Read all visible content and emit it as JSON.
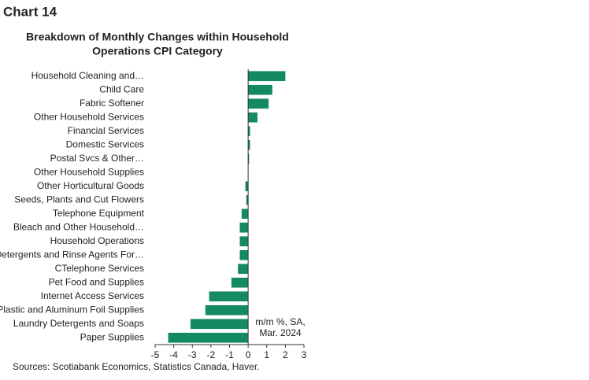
{
  "chart_label": "Chart 14",
  "chart_data": {
    "type": "barh",
    "title": [
      "Breakdown of Monthly Changes within Household",
      "Operations CPI Category"
    ],
    "categories": [
      "Household Cleaning and…",
      "Child Care",
      "Fabric Softener",
      "Other Household Services",
      "Financial Services",
      "Domestic Services",
      "Postal Svcs & Other…",
      "Other Household Supplies",
      "Other Horticultural Goods",
      "Seeds, Plants and Cut Flowers",
      "Telephone Equipment",
      "Bleach and Other Household…",
      "Household Operations",
      "Detergents and Rinse Agents For…",
      "CTelephone Services",
      "Pet Food and Supplies",
      "Internet Access Services",
      "Plastic and Aluminum Foil Supplies",
      "Laundry Detergents and Soaps",
      "Paper Supplies"
    ],
    "values": [
      2.0,
      1.3,
      1.1,
      0.5,
      0.1,
      0.1,
      0.05,
      0,
      -0.15,
      -0.1,
      -0.35,
      -0.45,
      -0.45,
      -0.45,
      -0.55,
      -0.9,
      -2.1,
      -2.3,
      -3.1,
      -4.3
    ],
    "color": "#138a60",
    "xlim": [
      -5,
      3
    ],
    "xticks": [
      -5,
      -4,
      -3,
      -2,
      -1,
      0,
      1,
      2,
      3
    ],
    "annotation": [
      "m/m %, SA,",
      "Mar. 2024"
    ]
  },
  "source": "Sources: Scotiabank Economics, Statistics Canada, Haver."
}
